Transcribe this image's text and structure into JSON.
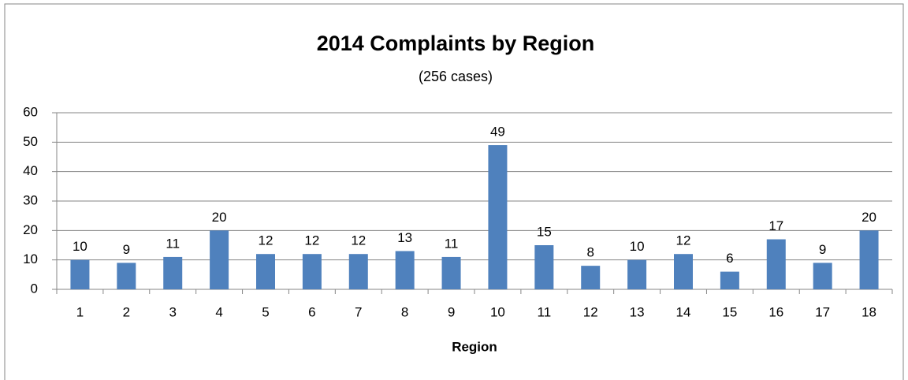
{
  "chart_data": {
    "type": "bar",
    "title": "2014 Complaints by Region",
    "subtitle": "(256 cases)",
    "x_label": "Region",
    "categories": [
      "1",
      "2",
      "3",
      "4",
      "5",
      "6",
      "7",
      "8",
      "9",
      "10",
      "11",
      "12",
      "13",
      "14",
      "15",
      "16",
      "17",
      "18"
    ],
    "values": [
      10,
      9,
      11,
      20,
      12,
      12,
      12,
      13,
      11,
      49,
      15,
      8,
      10,
      12,
      6,
      17,
      9,
      20
    ],
    "color": "#4f81bd",
    "ylim": [
      0,
      60
    ],
    "yticks": [
      0,
      10,
      20,
      30,
      40,
      50,
      60
    ],
    "grid": true
  }
}
